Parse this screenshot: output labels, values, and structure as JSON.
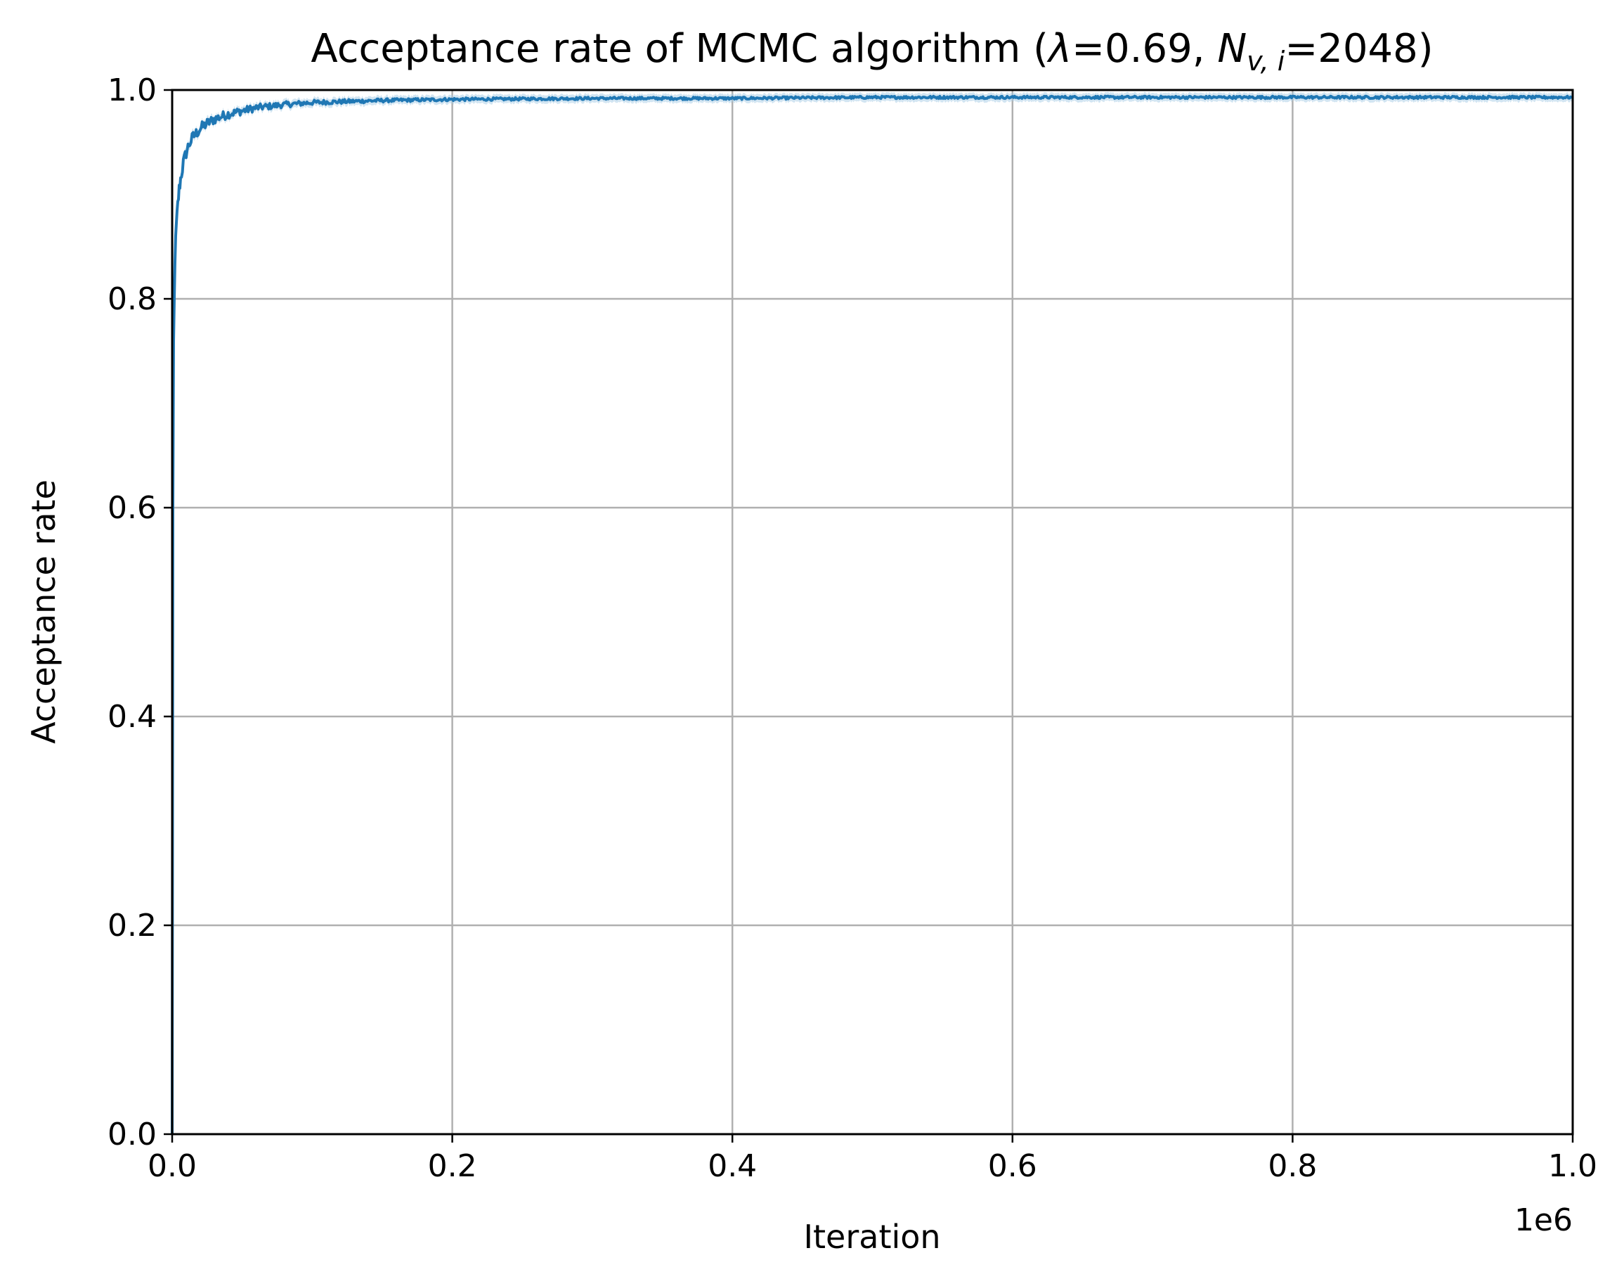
{
  "chart_data": {
    "type": "line",
    "title_main": "Acceptance rate of MCMC algorithm (",
    "title_lambda": "λ",
    "title_mid": "=0.69, ",
    "title_n": "N",
    "title_sub": "v, i",
    "title_end": "=2048)",
    "xlabel": "Iteration",
    "ylabel": "Acceptance rate",
    "x_offset_label": "1e6",
    "xlim": [
      0,
      1000000
    ],
    "ylim": [
      0,
      1.0
    ],
    "x_scale_factor": 1000000,
    "xticks": [
      0,
      200000,
      400000,
      600000,
      800000,
      1000000
    ],
    "xtick_labels": [
      "0.0",
      "0.2",
      "0.4",
      "0.6",
      "0.8",
      "1.0"
    ],
    "yticks": [
      0,
      0.2,
      0.4,
      0.6,
      0.8,
      1.0
    ],
    "ytick_labels": [
      "0.0",
      "0.2",
      "0.4",
      "0.6",
      "0.8",
      "1.0"
    ],
    "grid": true,
    "color": "#1f77b4",
    "band_color": "#a6cbe6",
    "series": [
      {
        "x": [
          0,
          500,
          1000,
          2000,
          3000,
          4000,
          5000,
          6000,
          8000,
          10000,
          12000,
          15000,
          20000,
          25000,
          30000,
          40000,
          50000,
          60000,
          80000,
          100000,
          150000,
          200000,
          300000,
          400000,
          500000,
          600000,
          700000,
          800000,
          900000,
          1000000
        ],
        "y": [
          0.0,
          0.6,
          0.76,
          0.84,
          0.87,
          0.89,
          0.905,
          0.915,
          0.93,
          0.94,
          0.948,
          0.955,
          0.963,
          0.968,
          0.972,
          0.977,
          0.98,
          0.983,
          0.986,
          0.988,
          0.99,
          0.991,
          0.992,
          0.992,
          0.993,
          0.993,
          0.993,
          0.993,
          0.993,
          0.993
        ]
      }
    ]
  }
}
